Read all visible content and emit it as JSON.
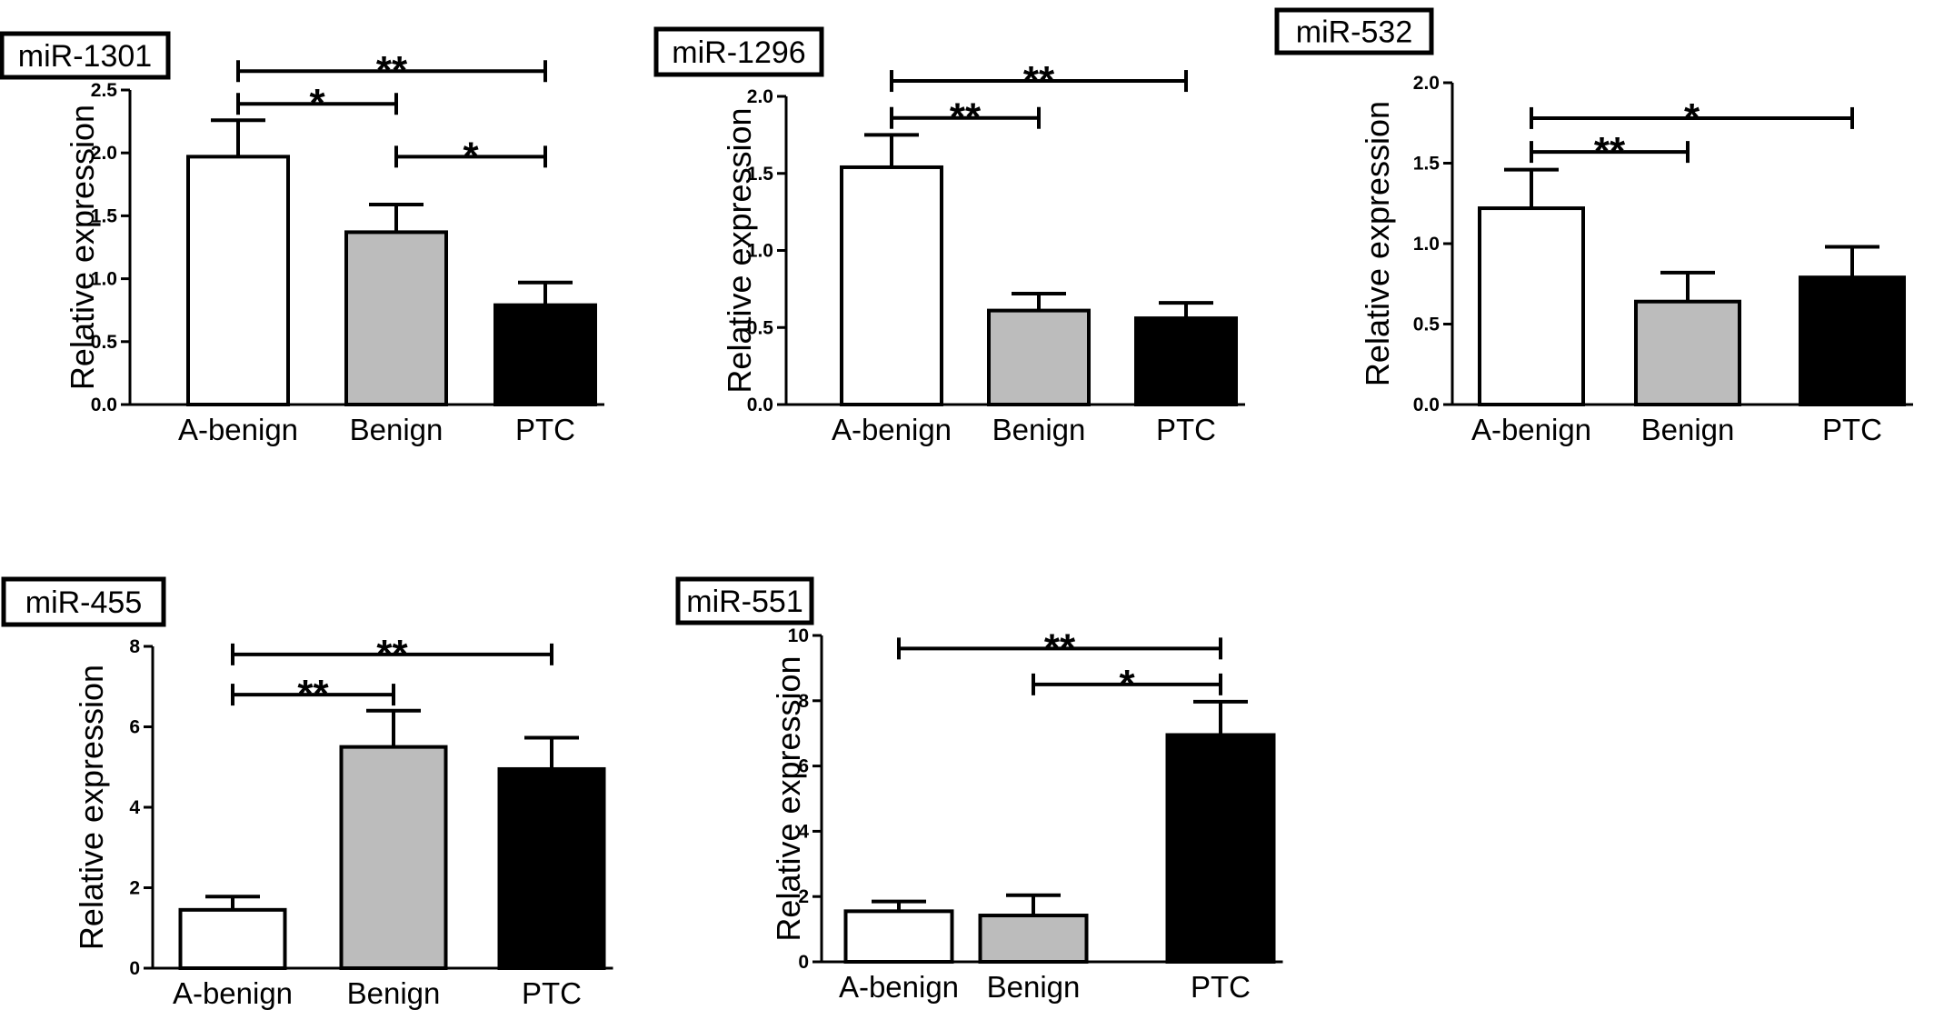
{
  "chart_data": [
    {
      "type": "bar",
      "title": "miR-1301",
      "ylabel": "Relative expression",
      "categories": [
        "A-benign",
        "Benign",
        "PTC"
      ],
      "values": [
        1.97,
        1.37,
        0.79
      ],
      "errors": [
        0.29,
        0.22,
        0.18
      ],
      "ylim": [
        0,
        2.5
      ],
      "yticks": [
        0.0,
        0.5,
        1.0,
        1.5,
        2.0,
        2.5
      ],
      "ytick_labels": [
        "0.0",
        "0.5",
        "1.0",
        "1.5",
        "2.0",
        "2.5"
      ],
      "bar_colors": [
        "#ffffff",
        "#bcbcbc",
        "#000000"
      ],
      "significance": [
        {
          "from": 0,
          "to": 2,
          "y": 2.65,
          "label": "**"
        },
        {
          "from": 0,
          "to": 1,
          "y": 2.39,
          "label": "*"
        },
        {
          "from": 1,
          "to": 2,
          "y": 1.97,
          "label": "*"
        }
      ]
    },
    {
      "type": "bar",
      "title": "miR-1296",
      "ylabel": "Relative expression",
      "categories": [
        "A-benign",
        "Benign",
        "PTC"
      ],
      "values": [
        1.54,
        0.61,
        0.56
      ],
      "errors": [
        0.21,
        0.11,
        0.1
      ],
      "ylim": [
        0,
        2.0
      ],
      "yticks": [
        0.0,
        0.5,
        1.0,
        1.5,
        2.0
      ],
      "ytick_labels": [
        "0.0",
        "0.5",
        "1.0",
        "1.5",
        "2.0"
      ],
      "bar_colors": [
        "#ffffff",
        "#bcbcbc",
        "#000000"
      ],
      "significance": [
        {
          "from": 0,
          "to": 2,
          "y": 2.1,
          "label": "**"
        },
        {
          "from": 0,
          "to": 1,
          "y": 1.86,
          "label": "**"
        }
      ]
    },
    {
      "type": "bar",
      "title": "miR-532",
      "ylabel": "Relative expression",
      "categories": [
        "A-benign",
        "Benign",
        "PTC"
      ],
      "values": [
        1.22,
        0.64,
        0.79
      ],
      "errors": [
        0.24,
        0.18,
        0.19
      ],
      "ylim": [
        0,
        2.0
      ],
      "yticks": [
        0.0,
        0.5,
        1.0,
        1.5,
        2.0
      ],
      "ytick_labels": [
        "0.0",
        "0.5",
        "1.0",
        "1.5",
        "2.0"
      ],
      "bar_colors": [
        "#ffffff",
        "#bcbcbc",
        "#000000"
      ],
      "significance": [
        {
          "from": 0,
          "to": 2,
          "y": 1.78,
          "label": "*"
        },
        {
          "from": 0,
          "to": 1,
          "y": 1.57,
          "label": "**"
        }
      ]
    },
    {
      "type": "bar",
      "title": "miR-455",
      "ylabel": "Relative expression",
      "categories": [
        "A-benign",
        "Benign",
        "PTC"
      ],
      "values": [
        1.45,
        5.5,
        4.95
      ],
      "errors": [
        0.33,
        0.9,
        0.78
      ],
      "ylim": [
        0,
        8
      ],
      "yticks": [
        0,
        2,
        4,
        6,
        8
      ],
      "ytick_labels": [
        "0",
        "2",
        "4",
        "6",
        "8"
      ],
      "bar_colors": [
        "#ffffff",
        "#bcbcbc",
        "#000000"
      ],
      "significance": [
        {
          "from": 0,
          "to": 2,
          "y": 7.8,
          "label": "**"
        },
        {
          "from": 0,
          "to": 1,
          "y": 6.8,
          "label": "**"
        }
      ]
    },
    {
      "type": "bar",
      "title": "miR-551",
      "ylabel": "Relative expression",
      "categories": [
        "A-benign",
        "Benign",
        "PTC"
      ],
      "values": [
        1.55,
        1.42,
        6.95
      ],
      "errors": [
        0.3,
        0.62,
        1.02
      ],
      "ylim": [
        0,
        10
      ],
      "yticks": [
        0,
        2,
        4,
        6,
        8,
        10
      ],
      "ytick_labels": [
        "0",
        "2",
        "4",
        "6",
        "8",
        "10"
      ],
      "bar_colors": [
        "#ffffff",
        "#bcbcbc",
        "#000000"
      ],
      "significance": [
        {
          "from": 0,
          "to": 2,
          "y": 9.6,
          "label": "**"
        },
        {
          "from": 1,
          "to": 2,
          "y": 8.5,
          "label": "*"
        }
      ]
    }
  ]
}
